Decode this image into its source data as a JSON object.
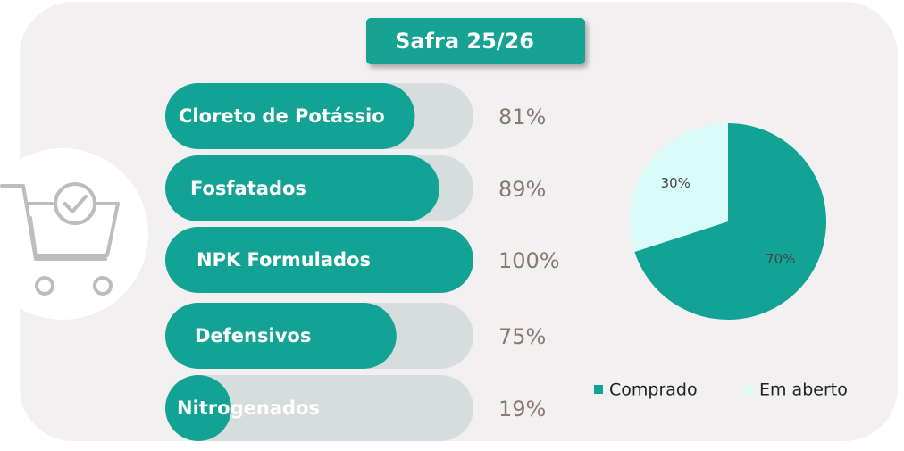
{
  "header": {
    "title": "Safra 25/26"
  },
  "chart_data": [
    {
      "type": "progress",
      "categories": [
        "Cloreto de Potássio",
        "Fosfatados",
        "NPK Formulados",
        "Defensivos",
        "Nitrogenados"
      ],
      "values": [
        81,
        89,
        100,
        75,
        19
      ],
      "value_labels": [
        "81%",
        "89%",
        "100%",
        "75%",
        "19%"
      ],
      "xlim": [
        0,
        100
      ],
      "color": "#12a394",
      "track_color": "#d6dedd"
    },
    {
      "type": "pie",
      "categories": [
        "Comprado",
        "Em aberto"
      ],
      "values": [
        70,
        30
      ],
      "value_labels": [
        "70%",
        "30%"
      ],
      "colors": [
        "#12a394",
        "#d9fbfa"
      ]
    }
  ]
}
